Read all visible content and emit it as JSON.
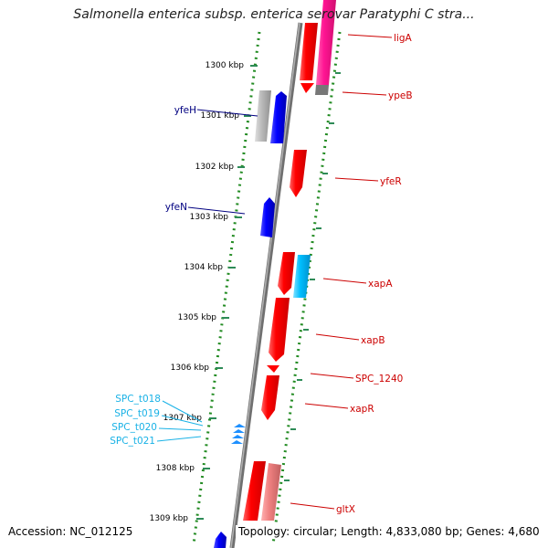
{
  "title": "Salmonella enterica subsp. enterica serovar Paratyphi C stra...",
  "footer": {
    "accession": "Accession: NC_012125",
    "summary": "Topology: circular; Length: 4,833,080 bp; Genes: 4,680"
  },
  "scale_ticks": [
    "1300 kbp",
    "1301 kbp",
    "1302 kbp",
    "1303 kbp",
    "1304 kbp",
    "1305 kbp",
    "1306 kbp",
    "1307 kbp",
    "1308 kbp",
    "1309 kbp"
  ],
  "genes": {
    "ligA": "ligA",
    "ypeB": "ypeB",
    "yfeH": "yfeH",
    "yfeR": "yfeR",
    "yfeN": "yfeN",
    "xapA": "xapA",
    "xapB": "xapB",
    "SPC_1240": "SPC_1240",
    "xapR": "xapR",
    "gltX": "gltX",
    "SPC_t018": "SPC_t018",
    "SPC_t019": "SPC_t019",
    "SPC_t020": "SPC_t020",
    "SPC_t021": "SPC_t021"
  },
  "colors": {
    "cds": "#ff0000",
    "cds_light": "#f08080",
    "rrna": "#ff1493",
    "trna": "#1e90ff",
    "gene_blue": "#0000ff",
    "gene_cyan": "#00bfff",
    "gene_gray": "#bbbbbb",
    "trna_label": "#1ab2e6",
    "gc_dots": "#228b22",
    "backbone": "#808080"
  }
}
